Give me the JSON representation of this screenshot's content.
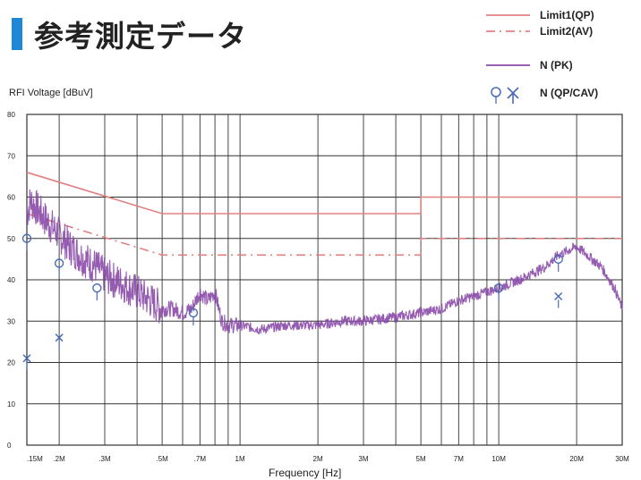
{
  "page": {
    "title": "参考測定データ"
  },
  "chart_data": {
    "type": "line",
    "xscale": "log",
    "xlim": [
      0.15,
      30
    ],
    "ylim": [
      0,
      80
    ],
    "xlabel": "Frequency [Hz]",
    "ylabel": "RFI  Voltage [dBuV]",
    "grid": true,
    "legend_position": "top-right",
    "x_tick_values": [
      0.15,
      0.2,
      0.3,
      0.5,
      0.7,
      1,
      2,
      3,
      5,
      7,
      10,
      20,
      30
    ],
    "x_tick_labels": [
      ".15M",
      ".2M",
      ".3M",
      ".5M",
      ".7M",
      "1M",
      "2M",
      "3M",
      "5M",
      "7M",
      "10M",
      "20M",
      "30M"
    ],
    "y_ticks": [
      0,
      10,
      20,
      30,
      40,
      50,
      60,
      70,
      80
    ],
    "limit_lines": [
      {
        "name": "Limit1(QP)",
        "style": "solid",
        "color": "#e08080",
        "points": [
          [
            0.15,
            66
          ],
          [
            0.5,
            56
          ],
          [
            5,
            56
          ],
          [
            5,
            60
          ],
          [
            30,
            60
          ]
        ]
      },
      {
        "name": "Limit2(AV)",
        "style": "dashdot",
        "color": "#e08080",
        "points": [
          [
            0.15,
            56
          ],
          [
            0.5,
            46
          ],
          [
            5,
            46
          ],
          [
            5,
            50
          ],
          [
            30,
            50
          ]
        ]
      }
    ],
    "series": [
      {
        "name": "N (PK)",
        "style": "solid",
        "color": "#8a4aa8",
        "x": [
          0.15,
          0.155,
          0.16,
          0.17,
          0.18,
          0.2,
          0.22,
          0.25,
          0.28,
          0.3,
          0.35,
          0.4,
          0.45,
          0.5,
          0.55,
          0.6,
          0.65,
          0.7,
          0.75,
          0.8,
          0.85,
          0.9,
          1,
          1.2,
          1.5,
          2,
          2.5,
          3,
          4,
          5,
          6,
          7,
          8,
          10,
          12,
          15,
          17,
          20,
          22,
          25,
          28,
          30
        ],
        "y": [
          56,
          59,
          58,
          56,
          54,
          51,
          48,
          45,
          43,
          41,
          39,
          37,
          35,
          33,
          33,
          32,
          33,
          37,
          35,
          37,
          30,
          29,
          29,
          28,
          29,
          29,
          30,
          30,
          31,
          32,
          33,
          35,
          36,
          38,
          40,
          43,
          46,
          48,
          46,
          43,
          38,
          33
        ]
      }
    ],
    "markers": [
      {
        "name": "N (QP/CAV)",
        "symbols": [
          "circle",
          "x"
        ],
        "color": "#4a6ab8"
      },
      {
        "symbol": "circle",
        "x": 0.15,
        "y": 50
      },
      {
        "symbol": "circle",
        "x": 0.2,
        "y": 44
      },
      {
        "symbol": "circle",
        "x": 0.28,
        "y": 38
      },
      {
        "symbol": "circle",
        "x": 0.66,
        "y": 32
      },
      {
        "symbol": "circle",
        "x": 10,
        "y": 38
      },
      {
        "symbol": "circle",
        "x": 17,
        "y": 45
      },
      {
        "symbol": "x",
        "x": 0.15,
        "y": 21
      },
      {
        "symbol": "x",
        "x": 0.2,
        "y": 26
      },
      {
        "symbol": "x",
        "x": 17,
        "y": 36
      }
    ]
  }
}
